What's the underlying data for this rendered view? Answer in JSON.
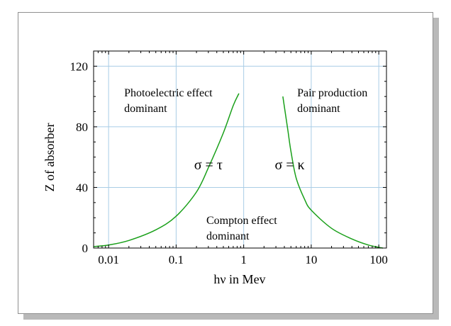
{
  "chart_data": {
    "type": "line",
    "title": "",
    "xlabel": "hν in Mev",
    "ylabel": "Z of absorber",
    "x_scale": "log",
    "xlim": [
      0.006,
      130
    ],
    "ylim": [
      0,
      130
    ],
    "x_ticks": [
      0.01,
      0.1,
      1,
      10,
      100
    ],
    "x_tick_labels": [
      "0.01",
      "0.1",
      "1",
      "10",
      "100"
    ],
    "y_ticks": [
      0,
      40,
      80,
      120
    ],
    "y_tick_labels": [
      "0",
      "40",
      "80",
      "120"
    ],
    "grid": true,
    "legend": "none",
    "series": [
      {
        "color": "#1aa01a",
        "points": [
          [
            0.006,
            1
          ],
          [
            0.01,
            2
          ],
          [
            0.02,
            5
          ],
          [
            0.05,
            12
          ],
          [
            0.1,
            21
          ],
          [
            0.2,
            37
          ],
          [
            0.3,
            53
          ],
          [
            0.5,
            76
          ],
          [
            0.7,
            94
          ],
          [
            0.85,
            102
          ]
        ]
      },
      {
        "color": "#1aa01a",
        "points": [
          [
            3.8,
            100
          ],
          [
            4.5,
            78
          ],
          [
            5,
            64
          ],
          [
            6,
            46
          ],
          [
            8,
            32
          ],
          [
            10,
            25
          ],
          [
            20,
            13
          ],
          [
            40,
            6
          ],
          [
            70,
            2
          ],
          [
            100,
            0.5
          ],
          [
            115,
            0
          ]
        ]
      }
    ],
    "annotations": [
      {
        "lines": [
          "Photoelectric effect",
          "dominant"
        ],
        "x": 0.017,
        "y": 100
      },
      {
        "lines": [
          "Pair production",
          "dominant"
        ],
        "x": 6.2,
        "y": 100
      },
      {
        "lines": [
          "Compton effect",
          "dominant"
        ],
        "x": 0.28,
        "y": 16
      },
      {
        "text": "σ = τ",
        "x": 0.3,
        "y": 52,
        "symbol": true
      },
      {
        "text": "σ = κ",
        "x": 4.8,
        "y": 52,
        "symbol": true
      }
    ]
  },
  "colors": {
    "grid": "#a9cde6",
    "axis": "#000000",
    "curve": "#1aa01a",
    "frame_shadow": "#b9b9b9"
  }
}
